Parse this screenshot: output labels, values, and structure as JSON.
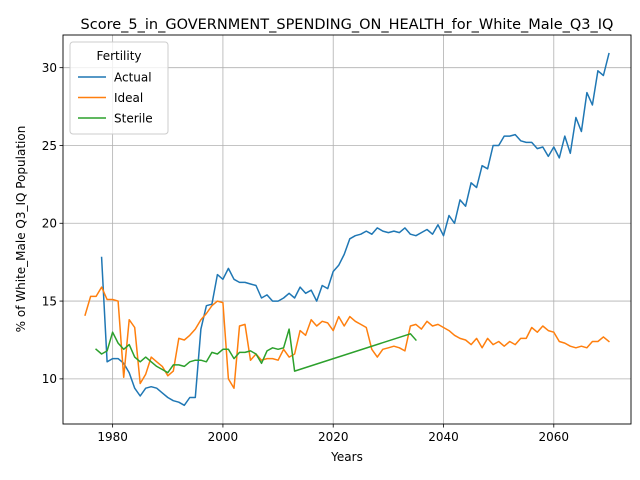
{
  "chart_data": {
    "type": "line",
    "title": "Score_5_in_GOVERNMENT_SPENDING_ON_HEALTH_for_White_Male_Q3_IQ",
    "xlabel": "Years",
    "ylabel": "% of White_Male Q3_IQ Population",
    "xlim": [
      1971,
      2074
    ],
    "ylim": [
      7.1,
      32.1
    ],
    "xticks": [
      1980,
      2000,
      2020,
      2040,
      2060
    ],
    "yticks": [
      10,
      15,
      20,
      25,
      30
    ],
    "grid": true,
    "legend": {
      "title": "Fertility",
      "position": "top-left"
    },
    "series": [
      {
        "name": "Actual",
        "color": "#1f77b4",
        "x": [
          1978,
          1979,
          1980,
          1981,
          1982,
          1983,
          1984,
          1985,
          1986,
          1987,
          1988,
          1989,
          1990,
          1991,
          1992,
          1993,
          1994,
          1995,
          1996,
          1997,
          1998,
          1999,
          2000,
          2001,
          2002,
          2003,
          2004,
          2005,
          2006,
          2007,
          2008,
          2009,
          2010,
          2011,
          2012,
          2013,
          2014,
          2015,
          2016,
          2017,
          2018,
          2019,
          2020,
          2021,
          2022,
          2023,
          2024,
          2025,
          2026,
          2027,
          2028,
          2029,
          2030,
          2031,
          2032,
          2033,
          2034,
          2035,
          2036,
          2037,
          2038,
          2039,
          2040,
          2041,
          2042,
          2043,
          2044,
          2045,
          2046,
          2047,
          2048,
          2049,
          2050,
          2051,
          2052,
          2053,
          2054,
          2055,
          2056,
          2057,
          2058,
          2059,
          2060,
          2061,
          2062,
          2063,
          2064,
          2065,
          2066,
          2067,
          2068,
          2069,
          2070
        ],
        "y": [
          17.8,
          11.1,
          11.3,
          11.3,
          11.0,
          10.4,
          9.4,
          8.9,
          9.4,
          9.5,
          9.4,
          9.1,
          8.8,
          8.6,
          8.5,
          8.3,
          8.8,
          8.8,
          13.2,
          14.7,
          14.8,
          16.7,
          16.4,
          17.1,
          16.4,
          16.2,
          16.2,
          16.1,
          16.0,
          15.2,
          15.4,
          15.0,
          15.0,
          15.2,
          15.5,
          15.2,
          15.9,
          15.5,
          15.7,
          15.0,
          16.0,
          15.8,
          16.9,
          17.3,
          18.0,
          19.0,
          19.2,
          19.3,
          19.5,
          19.3,
          19.7,
          19.5,
          19.4,
          19.5,
          19.4,
          19.7,
          19.3,
          19.2,
          19.4,
          19.6,
          19.3,
          19.9,
          19.2,
          20.5,
          20.0,
          21.5,
          21.1,
          22.6,
          22.3,
          23.7,
          23.5,
          25.0,
          25.0,
          25.6,
          25.6,
          25.7,
          25.3,
          25.2,
          25.2,
          24.8,
          24.9,
          24.3,
          24.9,
          24.2,
          25.6,
          24.5,
          26.8,
          25.9,
          28.4,
          27.6,
          29.8,
          29.5,
          30.9
        ]
      },
      {
        "name": "Ideal",
        "color": "#ff7f0e",
        "x": [
          1975,
          1976,
          1977,
          1978,
          1979,
          1980,
          1981,
          1982,
          1983,
          1984,
          1985,
          1986,
          1987,
          1988,
          1989,
          1990,
          1991,
          1992,
          1993,
          1994,
          1995,
          1996,
          1997,
          1998,
          1999,
          2000,
          2001,
          2002,
          2003,
          2004,
          2005,
          2006,
          2007,
          2008,
          2009,
          2010,
          2011,
          2012,
          2013,
          2014,
          2015,
          2016,
          2017,
          2018,
          2019,
          2020,
          2021,
          2022,
          2023,
          2024,
          2025,
          2026,
          2027,
          2028,
          2029,
          2030,
          2031,
          2032,
          2033,
          2034,
          2035,
          2036,
          2037,
          2038,
          2039,
          2040,
          2041,
          2042,
          2043,
          2044,
          2045,
          2046,
          2047,
          2048,
          2049,
          2050,
          2051,
          2052,
          2053,
          2054,
          2055,
          2056,
          2057,
          2058,
          2059,
          2060,
          2061,
          2062,
          2063,
          2064,
          2065,
          2066,
          2067,
          2068,
          2069,
          2070
        ],
        "y": [
          14.1,
          15.3,
          15.3,
          15.9,
          15.1,
          15.1,
          15.0,
          10.1,
          13.8,
          13.3,
          9.7,
          10.3,
          11.4,
          11.1,
          10.8,
          10.2,
          10.5,
          12.6,
          12.5,
          12.8,
          13.2,
          13.8,
          14.2,
          14.7,
          15.0,
          14.9,
          10.0,
          9.4,
          13.4,
          13.5,
          11.2,
          11.6,
          11.2,
          11.3,
          11.3,
          11.2,
          11.9,
          11.4,
          11.6,
          13.1,
          12.8,
          13.8,
          13.4,
          13.7,
          13.6,
          13.1,
          14.0,
          13.4,
          14.0,
          13.7,
          13.5,
          13.3,
          11.9,
          11.4,
          11.9,
          12.0,
          12.1,
          12.0,
          11.8,
          13.4,
          13.5,
          13.2,
          13.7,
          13.4,
          13.5,
          13.3,
          13.1,
          12.8,
          12.6,
          12.5,
          12.2,
          12.6,
          12.0,
          12.6,
          12.2,
          12.4,
          12.1,
          12.4,
          12.2,
          12.6,
          12.6,
          13.3,
          13.0,
          13.4,
          13.1,
          13.0,
          12.4,
          12.3,
          12.1,
          12.0,
          12.1,
          12.0,
          12.4,
          12.4,
          12.7,
          12.4
        ]
      },
      {
        "name": "Sterile",
        "color": "#2ca02c",
        "x": [
          1977,
          1978,
          1979,
          1980,
          1981,
          1982,
          1983,
          1984,
          1985,
          1986,
          1987,
          1988,
          1989,
          1990,
          1991,
          1992,
          1993,
          1994,
          1995,
          1996,
          1997,
          1998,
          1999,
          2000,
          2001,
          2002,
          2003,
          2004,
          2005,
          2006,
          2007,
          2008,
          2009,
          2010,
          2011,
          2012,
          2013,
          2034,
          2035
        ],
        "y": [
          11.9,
          11.6,
          11.8,
          13.0,
          12.3,
          11.9,
          12.2,
          11.4,
          11.1,
          11.4,
          11.1,
          10.8,
          10.6,
          10.4,
          10.9,
          10.9,
          10.8,
          11.1,
          11.2,
          11.2,
          11.1,
          11.7,
          11.6,
          11.9,
          11.9,
          11.3,
          11.7,
          11.7,
          11.8,
          11.6,
          11.0,
          11.8,
          12.0,
          11.9,
          12.0,
          13.2,
          10.5,
          12.9,
          12.5
        ]
      }
    ]
  }
}
